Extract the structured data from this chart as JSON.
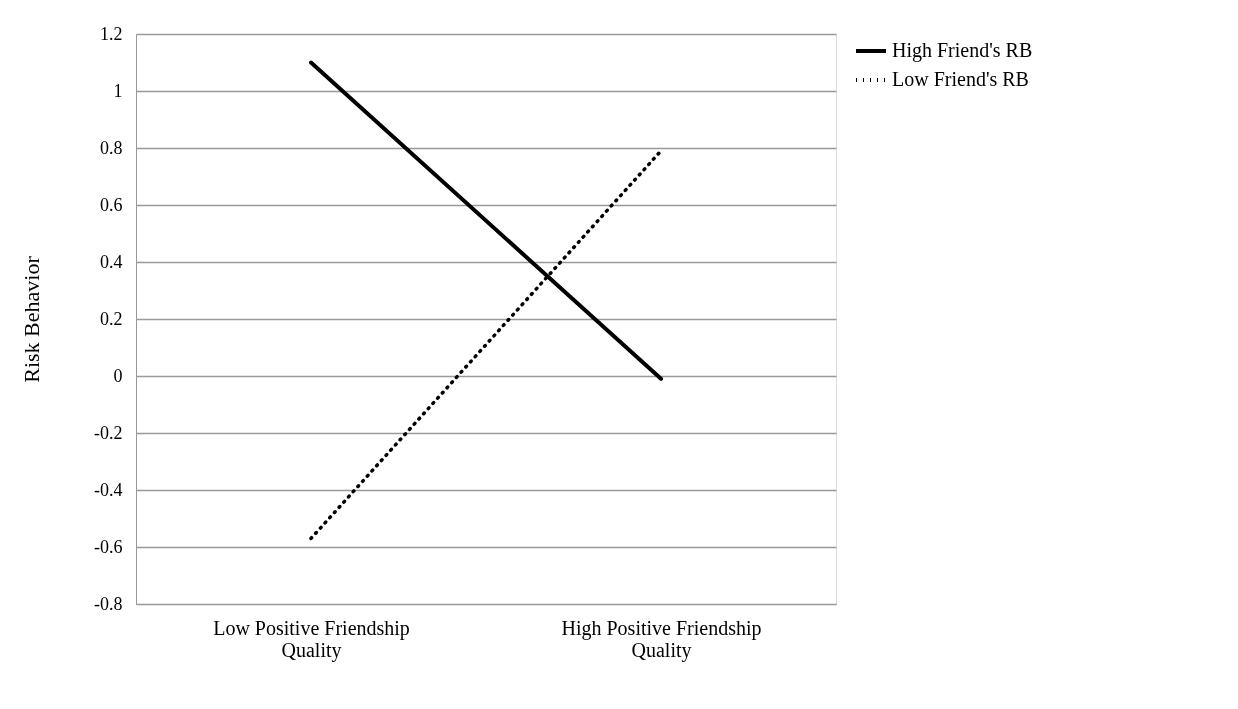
{
  "chart_data": {
    "type": "line",
    "ylabel": "Risk Behavior",
    "categories": [
      "Low Positive Friendship Quality",
      "High Positive Friendship Quality"
    ],
    "series": [
      {
        "name": "High Friend's RB",
        "color": "#000000",
        "line_style": "solid",
        "values": [
          1.1,
          -0.01
        ]
      },
      {
        "name": "Low Friend's RB",
        "color": "#000000",
        "line_style": "dotted",
        "values": [
          -0.57,
          0.79
        ]
      }
    ],
    "ylim": [
      -0.8,
      1.2
    ],
    "yticks": [
      -0.8,
      -0.6,
      -0.4,
      -0.2,
      0,
      0.2,
      0.4,
      0.6,
      0.8,
      1,
      1.2
    ],
    "grid": "y",
    "legend": "right",
    "marker": "none"
  }
}
